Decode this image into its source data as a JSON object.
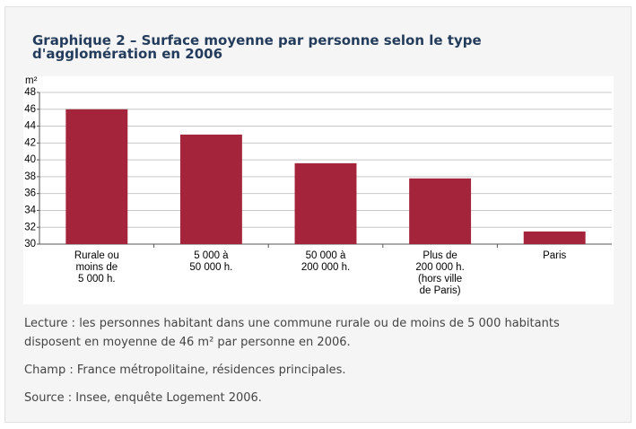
{
  "chart_data": {
    "type": "bar",
    "title": "Graphique 2 – Surface moyenne par personne selon le type d'agglomération en 2006",
    "y_label": "m²",
    "categories": [
      [
        "Rurale ou",
        "moins de",
        "5 000 h."
      ],
      [
        "5 000 à",
        "50 000 h."
      ],
      [
        "50 000 à",
        "200 000 h."
      ],
      [
        "Plus de",
        "200 000 h.",
        "(hors ville",
        "de Paris)"
      ],
      [
        "Paris"
      ]
    ],
    "values": [
      46,
      43,
      39.6,
      37.8,
      31.5
    ],
    "color": "#a3243b",
    "ylim": [
      30,
      48
    ],
    "yticks": [
      30,
      32,
      34,
      36,
      38,
      40,
      42,
      44,
      46,
      48
    ],
    "grid": true
  },
  "notes": [
    "Lecture : les personnes habitant dans une commune rurale ou de moins de 5 000 habitants disposent en moyenne de 46 m² par personne en 2006.",
    "Champ : France métropolitaine, résidences principales.",
    "Source : Insee, enquête Logement 2006."
  ]
}
